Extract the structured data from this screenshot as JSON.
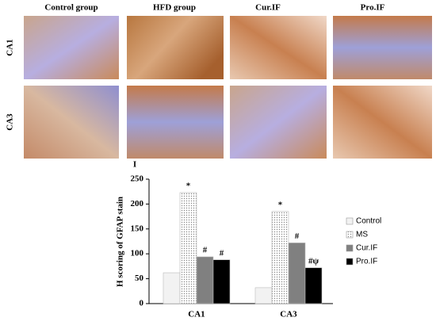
{
  "figure": {
    "column_headers": [
      "Control  group",
      "HFD group",
      "Cur.IF",
      "Pro.IF"
    ],
    "row_labels": [
      "CA1",
      "CA3"
    ],
    "panel_label": "I"
  },
  "chart_data": {
    "type": "bar",
    "ylabel": "H scoring of GFAP stain",
    "categories": [
      "CA1",
      "CA3"
    ],
    "series": [
      {
        "name": "Control",
        "color": "#f2f2f2",
        "hatch": false,
        "values": [
          62,
          32
        ],
        "annotations": [
          null,
          null
        ]
      },
      {
        "name": "MS",
        "color": "#ffffff",
        "hatch": true,
        "values": [
          223,
          185
        ],
        "annotations": [
          "*",
          "*"
        ]
      },
      {
        "name": "Cur.IF",
        "color": "#808080",
        "hatch": false,
        "values": [
          94,
          122
        ],
        "annotations": [
          "#",
          "#"
        ]
      },
      {
        "name": "Pro.IF",
        "color": "#000000",
        "hatch": false,
        "values": [
          88,
          72
        ],
        "annotations": [
          "#",
          "#ψ"
        ]
      }
    ],
    "ylim": [
      0,
      250
    ],
    "yticks": [
      0,
      50,
      100,
      150,
      200,
      250
    ],
    "legend": "right"
  }
}
